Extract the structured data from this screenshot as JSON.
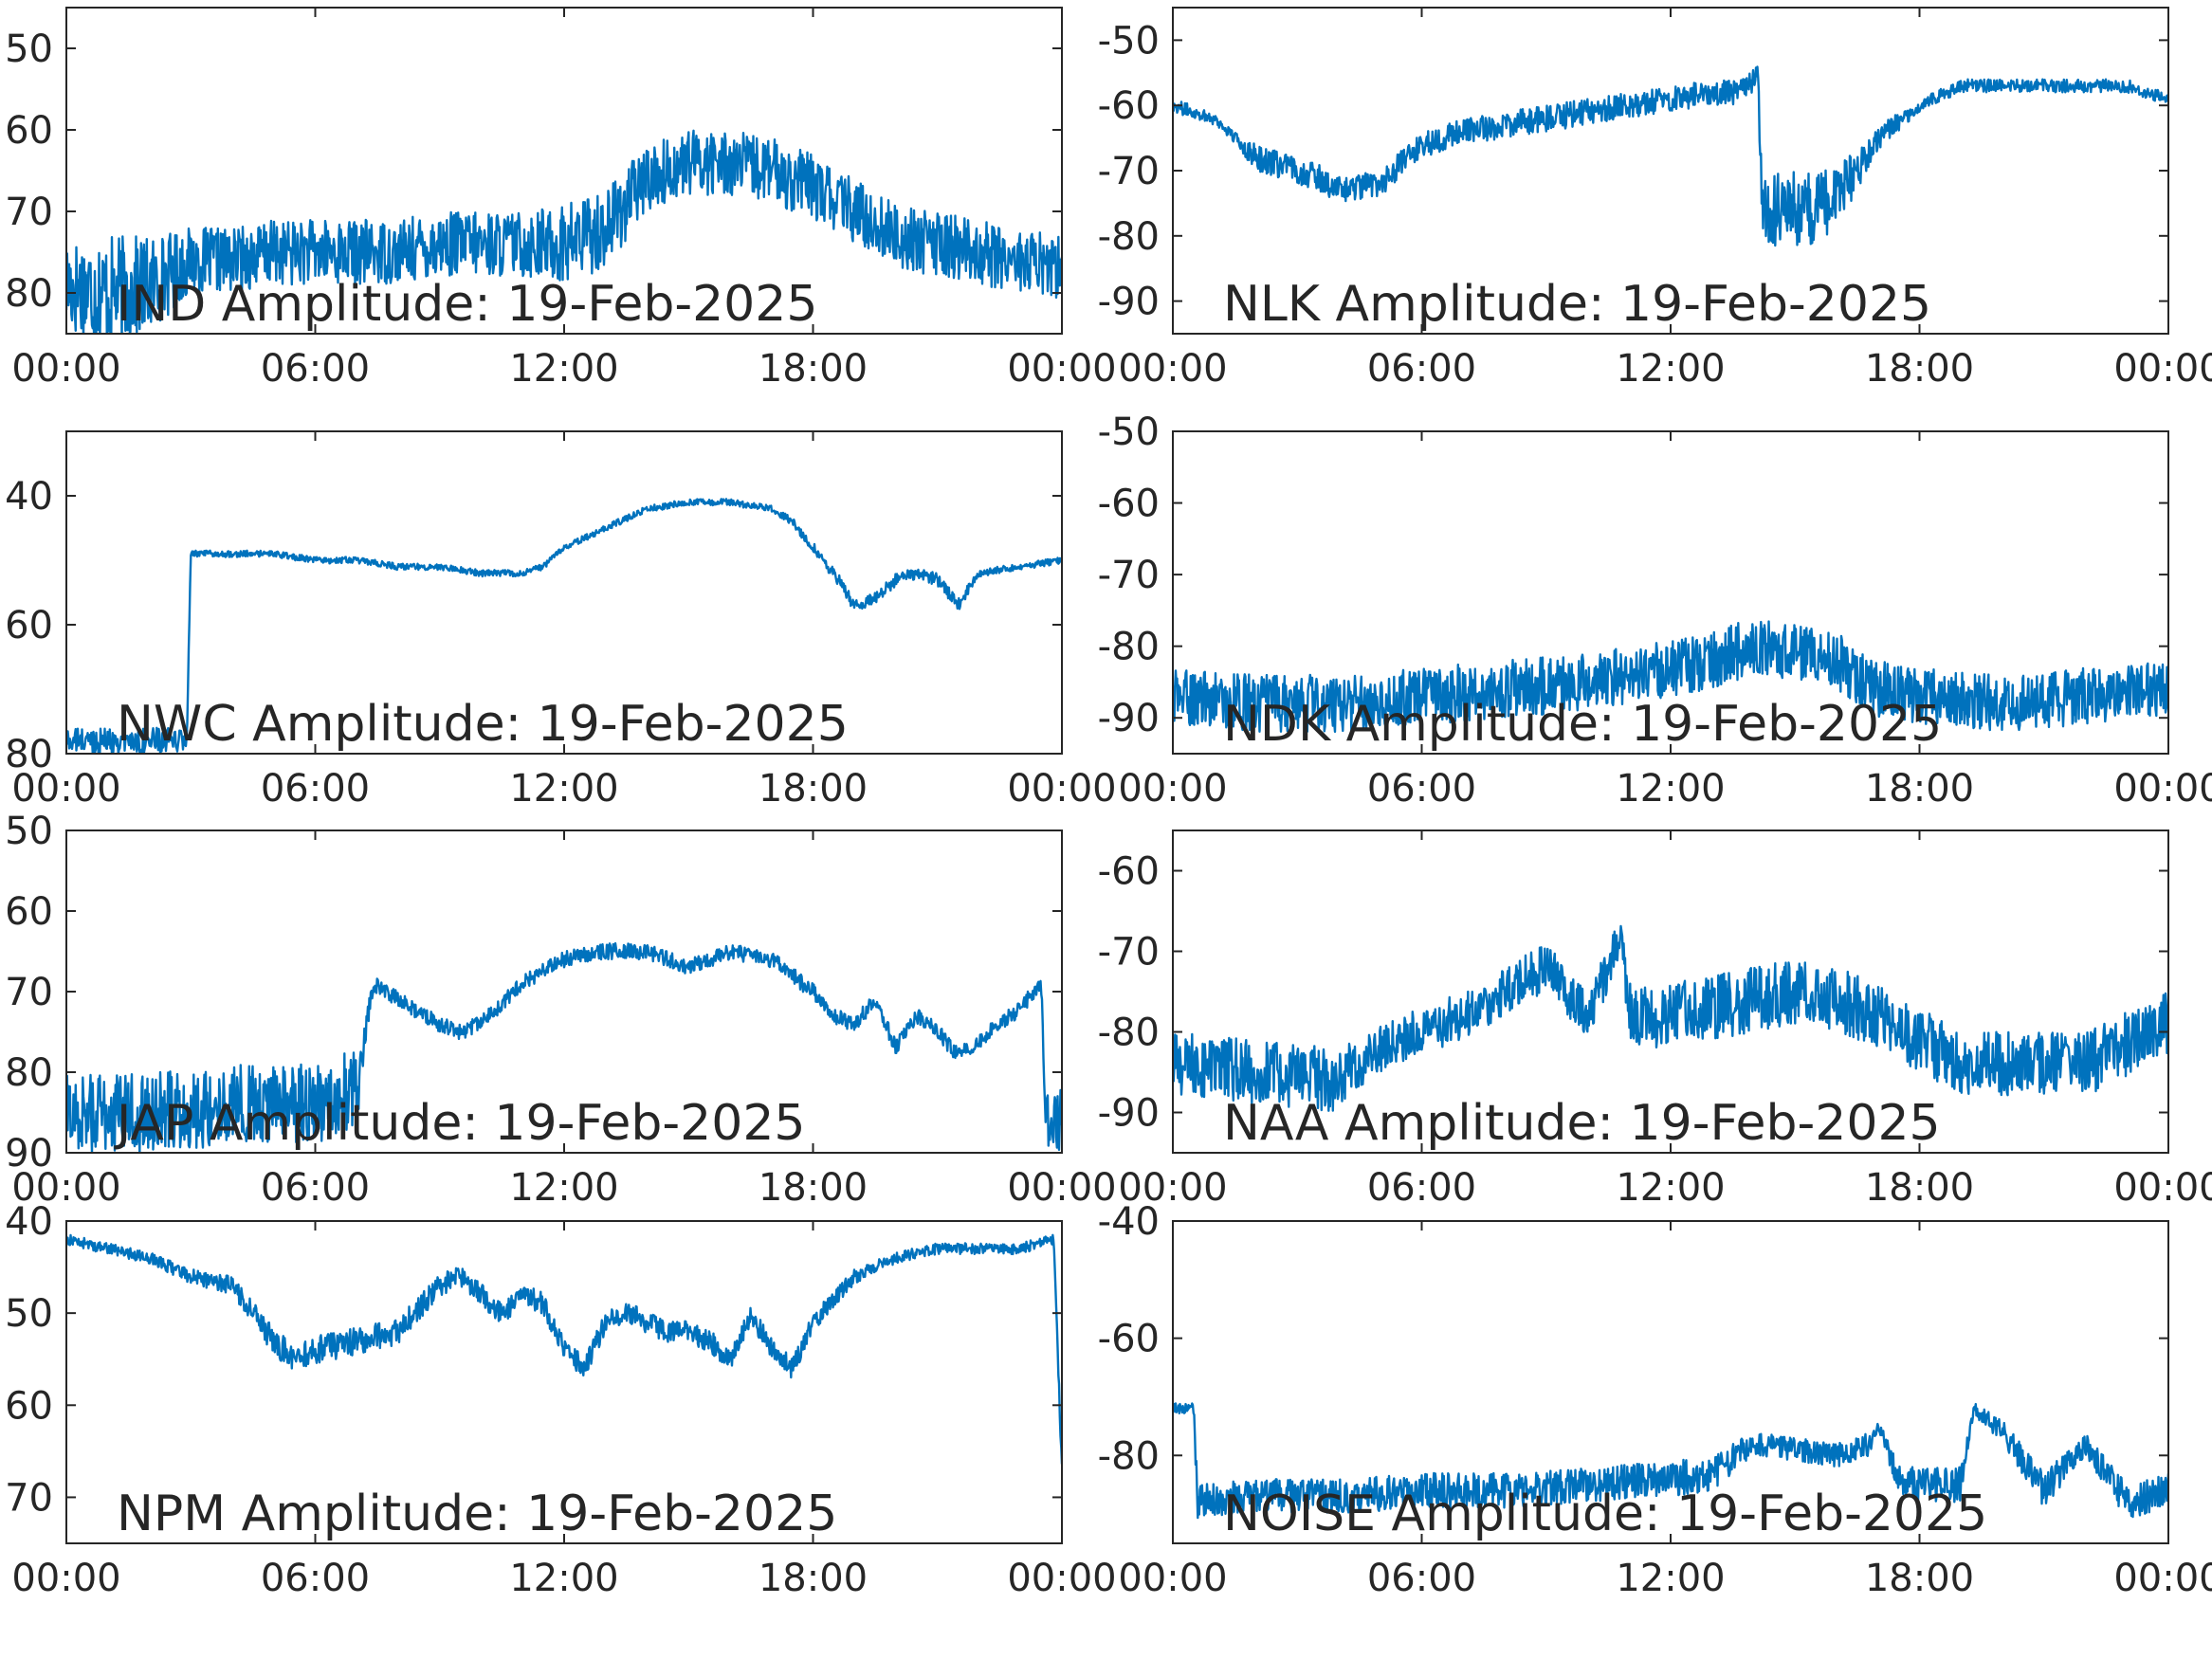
{
  "figure": {
    "line_color": "#0072BD"
  },
  "chart_data": [
    {
      "type": "line",
      "title": "IND Amplitude: 19-Feb-2025",
      "xlabel": "",
      "ylabel": "",
      "x_tick_labels": [
        "00:00",
        "06:00",
        "12:00",
        "18:00",
        "00:00"
      ],
      "xlim": [
        0,
        24
      ],
      "ylim": [
        -85,
        -45
      ],
      "y_ticks": [
        -80,
        -70,
        -60,
        -50
      ],
      "y_tick_labels": [
        "80",
        "70",
        "60",
        "50"
      ],
      "series": [
        {
          "x": [
            0,
            1,
            2,
            3,
            4,
            5,
            6,
            7,
            8,
            9,
            10,
            11,
            12,
            13,
            14,
            15,
            16,
            17,
            18,
            19,
            20,
            21,
            22,
            23,
            24
          ],
          "values": [
            -79,
            -80,
            -79,
            -76,
            -76,
            -75,
            -75,
            -75,
            -75,
            -74,
            -74,
            -74,
            -74,
            -72,
            -66,
            -64,
            -64,
            -65,
            -67,
            -70,
            -73,
            -74,
            -75,
            -76,
            -77
          ],
          "noise": [
            6,
            7,
            6,
            4,
            4,
            4,
            4,
            4,
            4,
            4,
            4,
            4,
            5,
            5,
            4,
            4,
            4,
            4,
            4,
            4,
            4,
            4,
            4,
            4,
            4
          ]
        }
      ]
    },
    {
      "type": "line",
      "title": "NLK Amplitude: 19-Feb-2025",
      "xlabel": "",
      "ylabel": "",
      "x_tick_labels": [
        "00:00",
        "06:00",
        "12:00",
        "18:00",
        "00:00"
      ],
      "xlim": [
        0,
        24
      ],
      "ylim": [
        -95,
        -45
      ],
      "y_ticks": [
        -90,
        -80,
        -70,
        -60,
        -50
      ],
      "y_tick_labels": [
        "-90",
        "-80",
        "-70",
        "-60",
        "-50"
      ],
      "series": [
        {
          "x": [
            0,
            1,
            1.5,
            2,
            3,
            3.5,
            4,
            5,
            6,
            7,
            8,
            9,
            10,
            11,
            12,
            13,
            13.5,
            14,
            14.1,
            14.2,
            14.8,
            15.5,
            16,
            16.5,
            17,
            18,
            19,
            20,
            21,
            22,
            23,
            23.5,
            24
          ],
          "values": [
            -60,
            -62,
            -65,
            -68,
            -70,
            -71,
            -73,
            -72,
            -66,
            -64,
            -63,
            -62,
            -61,
            -60,
            -59,
            -58,
            -58,
            -56,
            -54,
            -76,
            -76,
            -76,
            -74,
            -70,
            -65,
            -60,
            -57,
            -57,
            -57,
            -57,
            -57,
            -58,
            -59
          ],
          "noise": [
            1,
            1,
            1,
            2,
            2,
            2,
            2,
            2,
            2,
            2,
            2,
            2,
            2,
            2,
            2,
            2,
            2,
            2,
            1,
            5,
            6,
            6,
            5,
            3,
            2,
            1,
            1,
            1,
            1,
            1,
            1,
            1,
            1
          ]
        }
      ]
    },
    {
      "type": "line",
      "title": "NWC Amplitude: 19-Feb-2025",
      "xlabel": "",
      "ylabel": "",
      "x_tick_labels": [
        "00:00",
        "06:00",
        "12:00",
        "18:00",
        "00:00"
      ],
      "xlim": [
        0,
        24
      ],
      "ylim": [
        -80,
        -30
      ],
      "y_ticks": [
        -80,
        -60,
        -40
      ],
      "y_tick_labels": [
        "80",
        "60",
        "40"
      ],
      "series": [
        {
          "x": [
            0,
            1,
            2,
            2.9,
            3,
            4,
            5,
            6,
            7,
            8,
            9,
            10,
            11,
            11.5,
            12,
            13,
            14,
            15,
            16,
            17,
            17.5,
            18,
            18.5,
            19,
            19.5,
            20,
            20.5,
            21,
            21.5,
            22,
            23,
            24
          ],
          "values": [
            -78,
            -78,
            -78,
            -78,
            -49,
            -49,
            -49,
            -50,
            -50,
            -51,
            -51,
            -52,
            -52,
            -51,
            -48,
            -45,
            -42,
            -41,
            -41,
            -42,
            -44,
            -48,
            -52,
            -57,
            -56,
            -53,
            -52,
            -53,
            -57,
            -52,
            -51,
            -50
          ],
          "noise": [
            2,
            2,
            2,
            2,
            0.5,
            0.5,
            0.5,
            0.5,
            0.5,
            0.5,
            0.5,
            0.5,
            0.5,
            0.5,
            0.5,
            0.5,
            0.5,
            0.5,
            0.5,
            0.5,
            0.6,
            0.8,
            1,
            1,
            1,
            1,
            1,
            1,
            1,
            0.6,
            0.5,
            0.5
          ]
        }
      ]
    },
    {
      "type": "line",
      "title": "NDK Amplitude: 19-Feb-2025",
      "xlabel": "",
      "ylabel": "",
      "x_tick_labels": [
        "00:00",
        "06:00",
        "12:00",
        "18:00",
        "00:00"
      ],
      "xlim": [
        0,
        24
      ],
      "ylim": [
        -95,
        -50
      ],
      "y_ticks": [
        -90,
        -80,
        -70,
        -60,
        -50
      ],
      "y_tick_labels": [
        "-90",
        "-80",
        "-70",
        "-60",
        "-50"
      ],
      "series": [
        {
          "x": [
            0,
            2,
            4,
            6,
            8,
            10,
            12,
            13,
            14,
            15,
            16,
            17,
            18,
            20,
            22,
            24
          ],
          "values": [
            -87,
            -88,
            -88,
            -87,
            -86,
            -85,
            -83,
            -82,
            -80,
            -81,
            -82,
            -86,
            -87,
            -88,
            -87,
            -86
          ],
          "noise": [
            4,
            4,
            4,
            4,
            4,
            4,
            4,
            4,
            4,
            4,
            4,
            4,
            4,
            4,
            4,
            4
          ]
        }
      ]
    },
    {
      "type": "line",
      "title": "JAP Amplitude: 19-Feb-2025",
      "xlabel": "",
      "ylabel": "",
      "x_tick_labels": [
        "00:00",
        "06:00",
        "12:00",
        "18:00",
        "00:00"
      ],
      "xlim": [
        0,
        24
      ],
      "ylim": [
        -90,
        -50
      ],
      "y_ticks": [
        -90,
        -80,
        -70,
        -60,
        -50
      ],
      "y_tick_labels": [
        "90",
        "80",
        "70",
        "60",
        "50"
      ],
      "series": [
        {
          "x": [
            0,
            2,
            4,
            6,
            7,
            7.2,
            7.4,
            8,
            9,
            9.5,
            10,
            11,
            12,
            13,
            14,
            15,
            16,
            17,
            18,
            18.5,
            19,
            19.5,
            20,
            20.5,
            21,
            21.5,
            22,
            22.5,
            23,
            23.5,
            23.6,
            24
          ],
          "values": [
            -85,
            -85,
            -84,
            -84,
            -82,
            -75,
            -69,
            -71,
            -74,
            -75,
            -74,
            -69,
            -66,
            -65,
            -65,
            -67,
            -65,
            -66,
            -70,
            -73,
            -74,
            -71,
            -77,
            -73,
            -75,
            -78,
            -76,
            -74,
            -72,
            -69,
            -86,
            -86
          ],
          "noise": [
            5,
            5,
            5,
            5,
            5,
            2,
            1,
            1,
            1,
            1,
            1,
            1,
            1,
            1,
            1,
            1,
            1,
            1,
            1,
            1,
            1,
            1,
            1,
            1,
            1,
            1,
            1,
            1,
            1,
            1,
            4,
            4
          ]
        }
      ]
    },
    {
      "type": "line",
      "title": "NAA Amplitude: 19-Feb-2025",
      "xlabel": "",
      "ylabel": "",
      "x_tick_labels": [
        "00:00",
        "06:00",
        "12:00",
        "18:00",
        "00:00"
      ],
      "xlim": [
        0,
        24
      ],
      "ylim": [
        -95,
        -55
      ],
      "y_ticks": [
        -90,
        -80,
        -70,
        -60
      ],
      "y_tick_labels": [
        "-90",
        "-80",
        "-70",
        "-60"
      ],
      "series": [
        {
          "x": [
            0,
            2,
            4,
            5,
            6,
            7,
            8,
            9,
            10,
            10.5,
            10.8,
            11,
            12,
            13,
            14,
            15,
            16,
            17,
            18,
            19,
            20,
            22,
            24
          ],
          "values": [
            -84,
            -85,
            -86,
            -82,
            -80,
            -78,
            -75,
            -72,
            -78,
            -72,
            -68,
            -78,
            -78,
            -77,
            -76,
            -75,
            -76,
            -78,
            -81,
            -84,
            -84,
            -84,
            -79
          ],
          "noise": [
            4,
            4,
            4,
            3,
            3,
            3,
            3,
            3,
            3,
            3,
            2,
            4,
            4,
            4,
            4,
            4,
            4,
            4,
            4,
            4,
            4,
            4,
            4
          ]
        }
      ]
    },
    {
      "type": "line",
      "title": "NPM Amplitude: 19-Feb-2025",
      "xlabel": "",
      "ylabel": "",
      "x_tick_labels": [
        "00:00",
        "06:00",
        "12:00",
        "18:00",
        "00:00"
      ],
      "xlim": [
        0,
        24
      ],
      "ylim": [
        -75,
        -40
      ],
      "y_ticks": [
        -70,
        -60,
        -50,
        -40
      ],
      "y_tick_labels": [
        "70",
        "60",
        "50",
        "40"
      ],
      "series": [
        {
          "x": [
            0,
            1,
            2,
            3,
            4,
            5,
            5.5,
            6,
            7,
            8,
            9,
            9.5,
            10,
            10.5,
            11,
            11.5,
            12,
            12.5,
            13,
            13.5,
            14,
            14.5,
            15,
            15.5,
            16,
            16.5,
            17,
            17.5,
            18,
            19,
            20,
            21,
            22,
            23,
            23.8,
            24
          ],
          "values": [
            -42,
            -43,
            -44,
            -46,
            -47,
            -53,
            -55,
            -54,
            -53,
            -52,
            -47,
            -46,
            -48,
            -50,
            -48,
            -49,
            -54,
            -56,
            -51,
            -50,
            -51,
            -52,
            -52,
            -53,
            -55,
            -50,
            -54,
            -56,
            -51,
            -46,
            -44,
            -43,
            -43,
            -43,
            -42,
            -67
          ],
          "noise": [
            0.6,
            0.6,
            0.6,
            0.8,
            1,
            1.5,
            1.5,
            1.5,
            1.5,
            1.5,
            1.2,
            1.2,
            1.2,
            1.2,
            1.2,
            1.2,
            1.2,
            1.2,
            1.2,
            1.2,
            1.2,
            1.2,
            1.2,
            1.2,
            1.2,
            1.2,
            1.2,
            1.2,
            1,
            0.8,
            0.6,
            0.6,
            0.6,
            0.6,
            0.6,
            1
          ]
        }
      ]
    },
    {
      "type": "line",
      "title": "NOISE Amplitude: 19-Feb-2025",
      "xlabel": "",
      "ylabel": "",
      "x_tick_labels": [
        "00:00",
        "06:00",
        "12:00",
        "18:00",
        "00:00"
      ],
      "xlim": [
        0,
        24
      ],
      "ylim": [
        -95,
        -40
      ],
      "y_ticks": [
        -80,
        -60,
        -40
      ],
      "y_tick_labels": [
        "-80",
        "-60",
        "-40"
      ],
      "series": [
        {
          "x": [
            0,
            0.5,
            0.6,
            2,
            4,
            6,
            8,
            10,
            12,
            13,
            14,
            15,
            16,
            16.8,
            17,
            17.5,
            18,
            19,
            19.3,
            20,
            21,
            22,
            23,
            24
          ],
          "values": [
            -72,
            -72,
            -88,
            -87,
            -87,
            -86,
            -86,
            -85,
            -84,
            -83,
            -78,
            -79,
            -80,
            -78,
            -75,
            -84,
            -85,
            -85,
            -72,
            -76,
            -86,
            -78,
            -88,
            -86
          ],
          "noise": [
            1,
            1,
            3,
            3,
            3,
            3,
            3,
            3,
            3,
            3,
            2,
            2,
            2,
            2,
            1,
            3,
            3,
            3,
            1,
            2,
            3,
            2,
            3,
            3
          ]
        }
      ]
    }
  ]
}
